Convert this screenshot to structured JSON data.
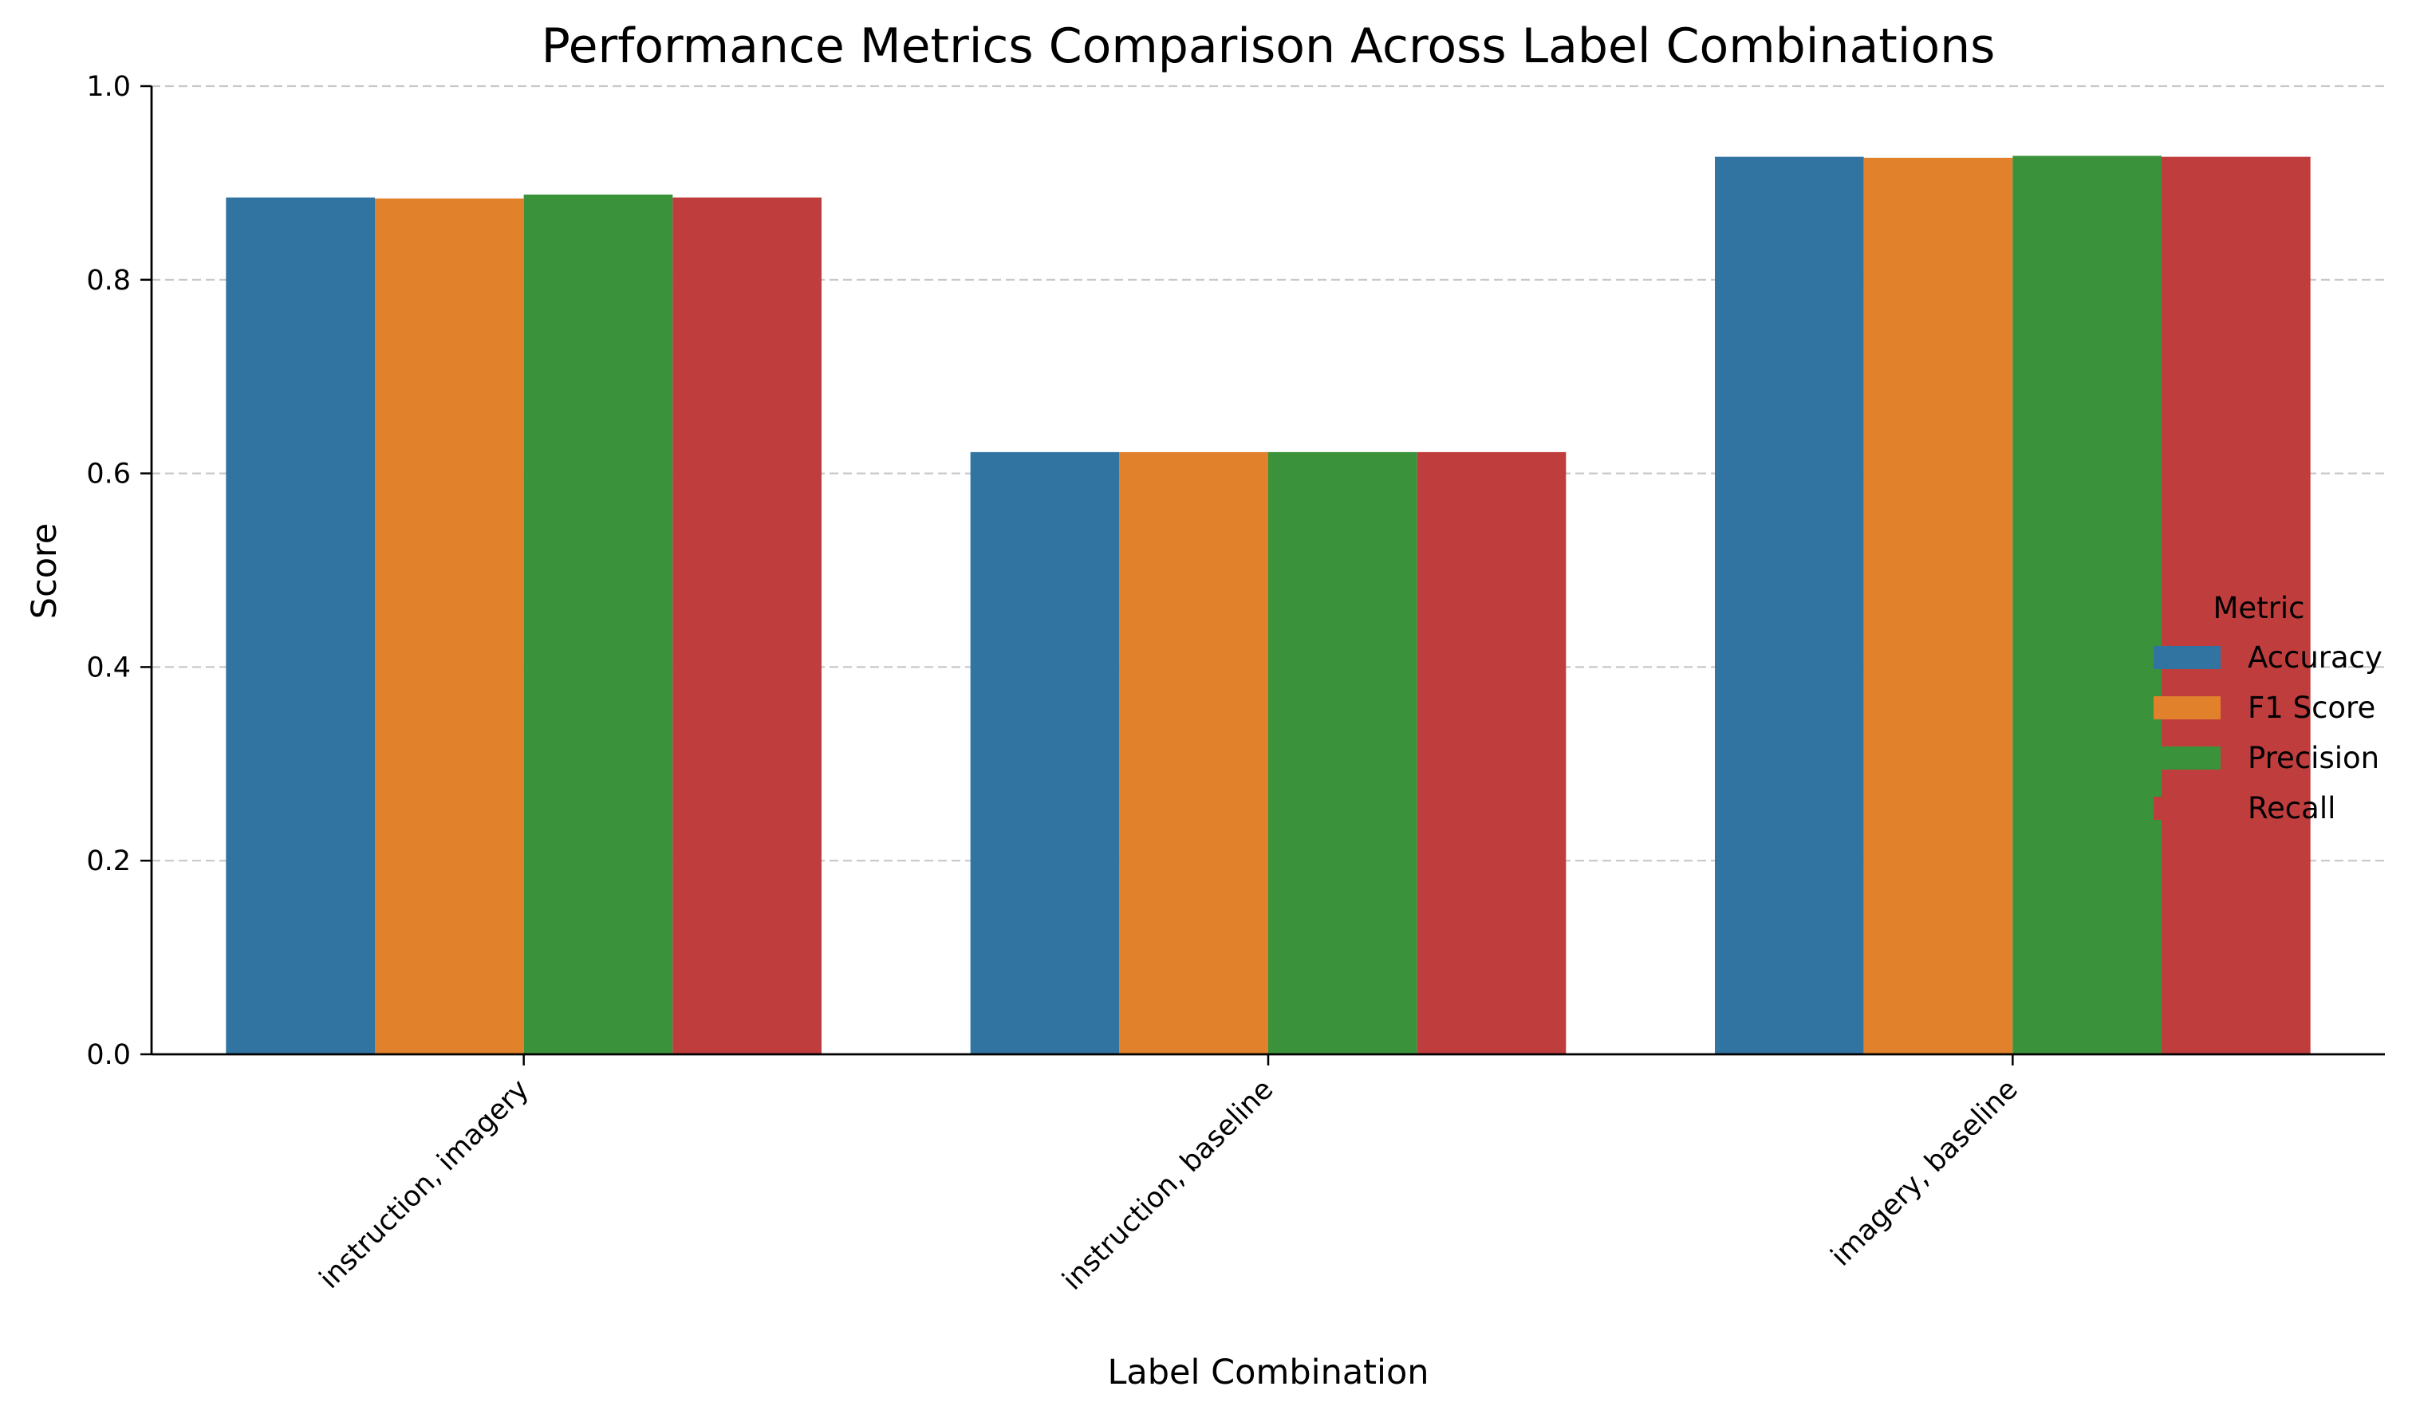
{
  "chart_data": {
    "type": "bar",
    "title": "Performance Metrics Comparison Across Label Combinations",
    "xlabel": "Label Combination",
    "ylabel": "Score",
    "ylim": [
      0,
      1.0
    ],
    "yticks": [
      "0.0",
      "0.2",
      "0.4",
      "0.6",
      "0.8",
      "1.0"
    ],
    "grid": "y-dashed",
    "categories": [
      "instruction, imagery",
      "instruction, baseline",
      "imagery, baseline"
    ],
    "legend": {
      "title": "Metric",
      "placement": "right"
    },
    "series": [
      {
        "name": "Accuracy",
        "color": "#3274a1",
        "values": [
          0.885,
          0.622,
          0.927
        ]
      },
      {
        "name": "F1 Score",
        "color": "#e1812c",
        "values": [
          0.884,
          0.622,
          0.926
        ]
      },
      {
        "name": "Precision",
        "color": "#3a923a",
        "values": [
          0.888,
          0.622,
          0.928
        ]
      },
      {
        "name": "Recall",
        "color": "#c03d3e",
        "values": [
          0.885,
          0.622,
          0.927
        ]
      }
    ]
  }
}
